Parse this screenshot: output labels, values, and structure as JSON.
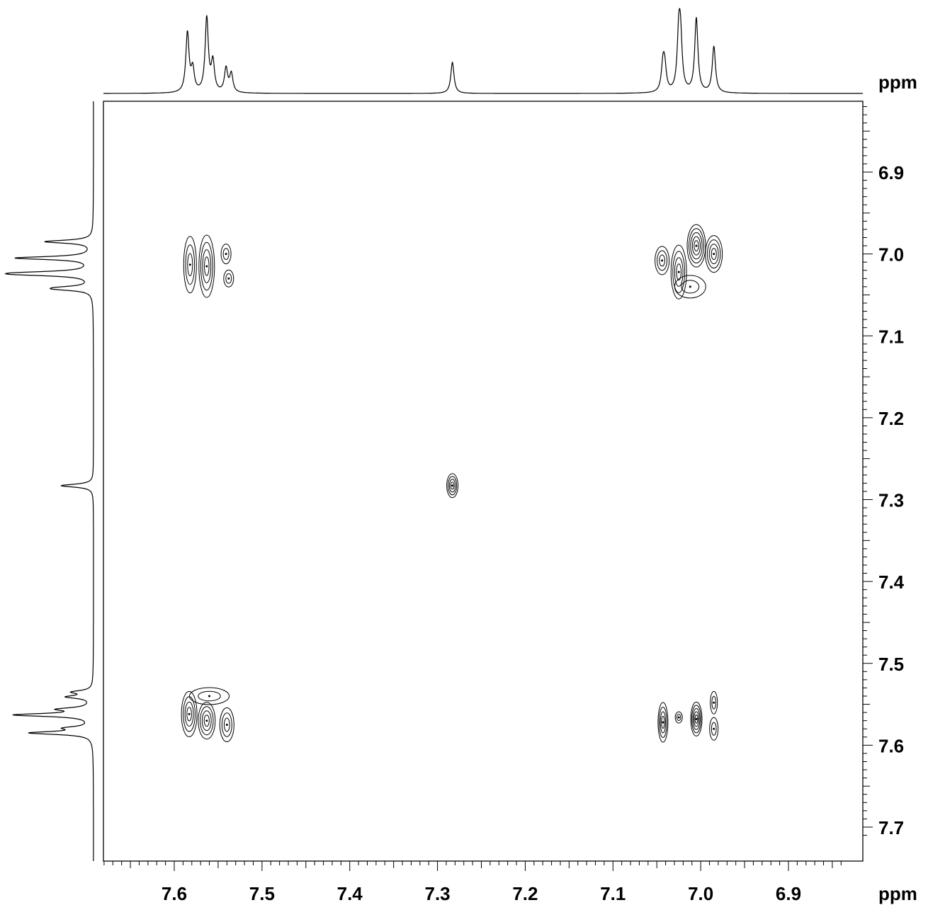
{
  "chart_data": {
    "type": "2D NMR contour",
    "x_axis": {
      "unit": "ppm",
      "ticks": [
        "7.6",
        "7.5",
        "7.4",
        "7.3",
        "7.2",
        "7.1",
        "7.0",
        "6.9"
      ],
      "range": [
        7.68,
        6.83
      ],
      "reversed": true
    },
    "y_axis": {
      "unit": "ppm",
      "ticks": [
        "6.9",
        "7.0",
        "7.1",
        "7.2",
        "7.3",
        "7.4",
        "7.5",
        "7.6",
        "7.7"
      ],
      "range": [
        6.81,
        7.72
      ]
    },
    "projection_peaks": [
      {
        "ppm": 7.585,
        "height": 0.8
      },
      {
        "ppm": 7.579,
        "height": 0.3
      },
      {
        "ppm": 7.563,
        "height": 1.0
      },
      {
        "ppm": 7.556,
        "height": 0.4
      },
      {
        "ppm": 7.541,
        "height": 0.32
      },
      {
        "ppm": 7.535,
        "height": 0.25
      },
      {
        "ppm": 7.283,
        "height": 0.42
      },
      {
        "ppm": 7.043,
        "height": 0.35
      },
      {
        "ppm": 7.041,
        "height": 0.3
      },
      {
        "ppm": 7.025,
        "height": 0.7
      },
      {
        "ppm": 7.023,
        "height": 0.65
      },
      {
        "ppm": 7.005,
        "height": 1.0
      },
      {
        "ppm": 6.985,
        "height": 0.62
      }
    ],
    "cross_peaks": [
      {
        "x": 7.565,
        "y": 7.01
      },
      {
        "x": 7.01,
        "y": 7.01
      },
      {
        "x": 7.283,
        "y": 7.283
      },
      {
        "x": 7.565,
        "y": 7.565
      },
      {
        "x": 7.015,
        "y": 7.565
      }
    ]
  }
}
